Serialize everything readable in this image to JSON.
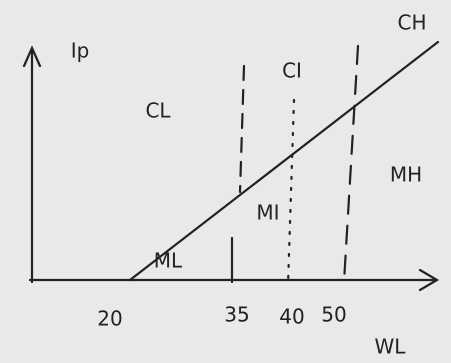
{
  "axes": {
    "y_label": "Ip",
    "x_label": "WL"
  },
  "x_ticks": [
    "20",
    "35",
    "40",
    "50"
  ],
  "regions": {
    "CL": "CL",
    "CI": "CI",
    "CH": "CH",
    "ML": "ML",
    "MI": "MI",
    "MH": "MH"
  }
}
